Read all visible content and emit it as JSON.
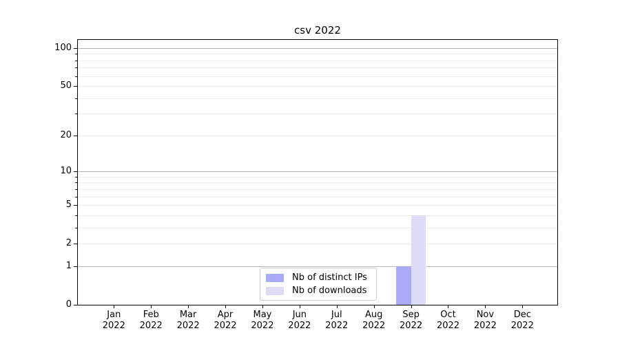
{
  "chart_data": {
    "type": "bar",
    "title": "csv 2022",
    "categories": [
      "Jan 2022",
      "Feb 2022",
      "Mar 2022",
      "Apr 2022",
      "May 2022",
      "Jun 2022",
      "Jul 2022",
      "Aug 2022",
      "Sep 2022",
      "Oct 2022",
      "Nov 2022",
      "Dec 2022"
    ],
    "series": [
      {
        "name": "Nb of distinct IPs",
        "color": "#aaaaf8",
        "values": [
          0,
          0,
          0,
          0,
          0,
          0,
          0,
          0,
          1,
          0,
          0,
          0
        ]
      },
      {
        "name": "Nb of downloads",
        "color": "#dcdcf8",
        "values": [
          0,
          0,
          0,
          0,
          0,
          0,
          0,
          0,
          4,
          0,
          0,
          0
        ]
      }
    ],
    "y_scale": "log1p",
    "ylim": [
      0,
      116
    ],
    "y_tick_values": [
      0,
      1,
      2,
      5,
      10,
      20,
      50,
      100
    ],
    "y_tick_labels": [
      "0",
      "1",
      "2",
      "5",
      "10",
      "20",
      "50",
      "100"
    ],
    "y_grid_major": [
      1,
      10,
      100
    ],
    "y_grid_minor": [
      2,
      3,
      4,
      5,
      6,
      7,
      8,
      9,
      20,
      30,
      40,
      50,
      60,
      70,
      80,
      90
    ],
    "grid": "on",
    "legend_position": "lower center",
    "colors": {
      "major_grid": "#b7b7b7",
      "minor_grid": "#ececec",
      "axis": "#000000",
      "text": "#000000",
      "background": "#ffffff"
    }
  }
}
